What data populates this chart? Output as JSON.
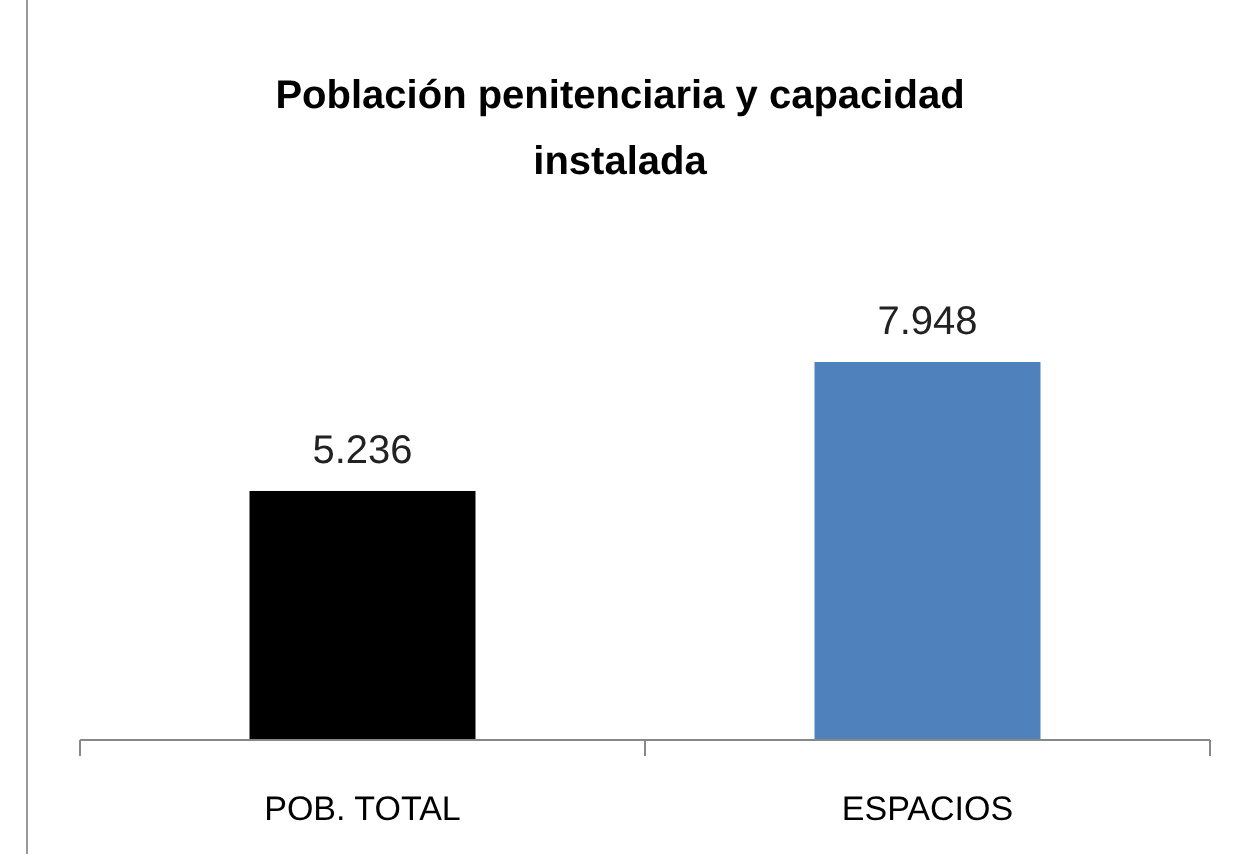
{
  "chart_data": {
    "type": "bar",
    "title": "Población penitenciaria y capacidad instalada",
    "categories": [
      "POB. TOTAL",
      "ESPACIOS"
    ],
    "values": [
      5236,
      7948
    ],
    "colors": [
      "#000000",
      "#4f81bd"
    ],
    "value_labels": [
      "5.236",
      "7.948"
    ]
  }
}
